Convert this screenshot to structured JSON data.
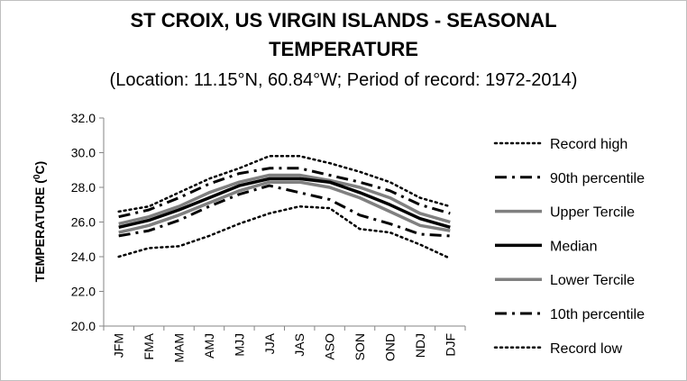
{
  "chart_data": {
    "type": "line",
    "title_line1": "ST CROIX, US VIRGIN ISLANDS - SEASONAL",
    "title_line2": "TEMPERATURE",
    "subtitle": "(Location: 11.15°N, 60.84°W; Period of record: 1972-2014)",
    "ylabel_main": "TEMPERATURE (",
    "ylabel_sup": "0",
    "ylabel_end": "C)",
    "categories": [
      "JFM",
      "FMA",
      "MAM",
      "AMJ",
      "MJJ",
      "JJA",
      "JAS",
      "ASO",
      "SON",
      "OND",
      "NDJ",
      "DJF"
    ],
    "ylim": [
      20.0,
      32.0
    ],
    "yticks": [
      "32.0",
      "30.0",
      "28.0",
      "26.0",
      "24.0",
      "22.0",
      "20.0"
    ],
    "grid": false,
    "legend_position": "right",
    "series": [
      {
        "name": "Record high",
        "style": "dotted",
        "color": "#000000",
        "values": [
          26.6,
          26.9,
          27.7,
          28.5,
          29.1,
          29.8,
          29.8,
          29.4,
          28.9,
          28.3,
          27.4,
          26.9
        ]
      },
      {
        "name": "90th percentile",
        "style": "dashdot",
        "color": "#000000",
        "values": [
          26.3,
          26.7,
          27.4,
          28.2,
          28.8,
          29.1,
          29.1,
          28.7,
          28.3,
          27.8,
          27.0,
          26.5
        ]
      },
      {
        "name": "Upper Tercile",
        "style": "solid-gray",
        "color": "#808080",
        "values": [
          25.9,
          26.3,
          26.9,
          27.7,
          28.3,
          28.7,
          28.7,
          28.4,
          28.0,
          27.4,
          26.5,
          26.0
        ]
      },
      {
        "name": "Median",
        "style": "solid-black",
        "color": "#000000",
        "values": [
          25.7,
          26.1,
          26.7,
          27.4,
          28.1,
          28.5,
          28.5,
          28.3,
          27.7,
          27.0,
          26.2,
          25.7
        ]
      },
      {
        "name": "Lower Tercile",
        "style": "solid-gray",
        "color": "#808080",
        "values": [
          25.4,
          25.8,
          26.4,
          27.1,
          27.8,
          28.3,
          28.3,
          28.0,
          27.4,
          26.6,
          25.8,
          25.5
        ]
      },
      {
        "name": "10th percentile",
        "style": "dashdot",
        "color": "#000000",
        "values": [
          25.2,
          25.5,
          26.1,
          26.9,
          27.6,
          28.1,
          27.7,
          27.3,
          26.4,
          25.9,
          25.3,
          25.2
        ]
      },
      {
        "name": "Record low",
        "style": "dotted",
        "color": "#000000",
        "values": [
          24.0,
          24.5,
          24.6,
          25.2,
          25.9,
          26.5,
          26.9,
          26.8,
          25.6,
          25.4,
          24.7,
          23.9
        ]
      }
    ]
  }
}
